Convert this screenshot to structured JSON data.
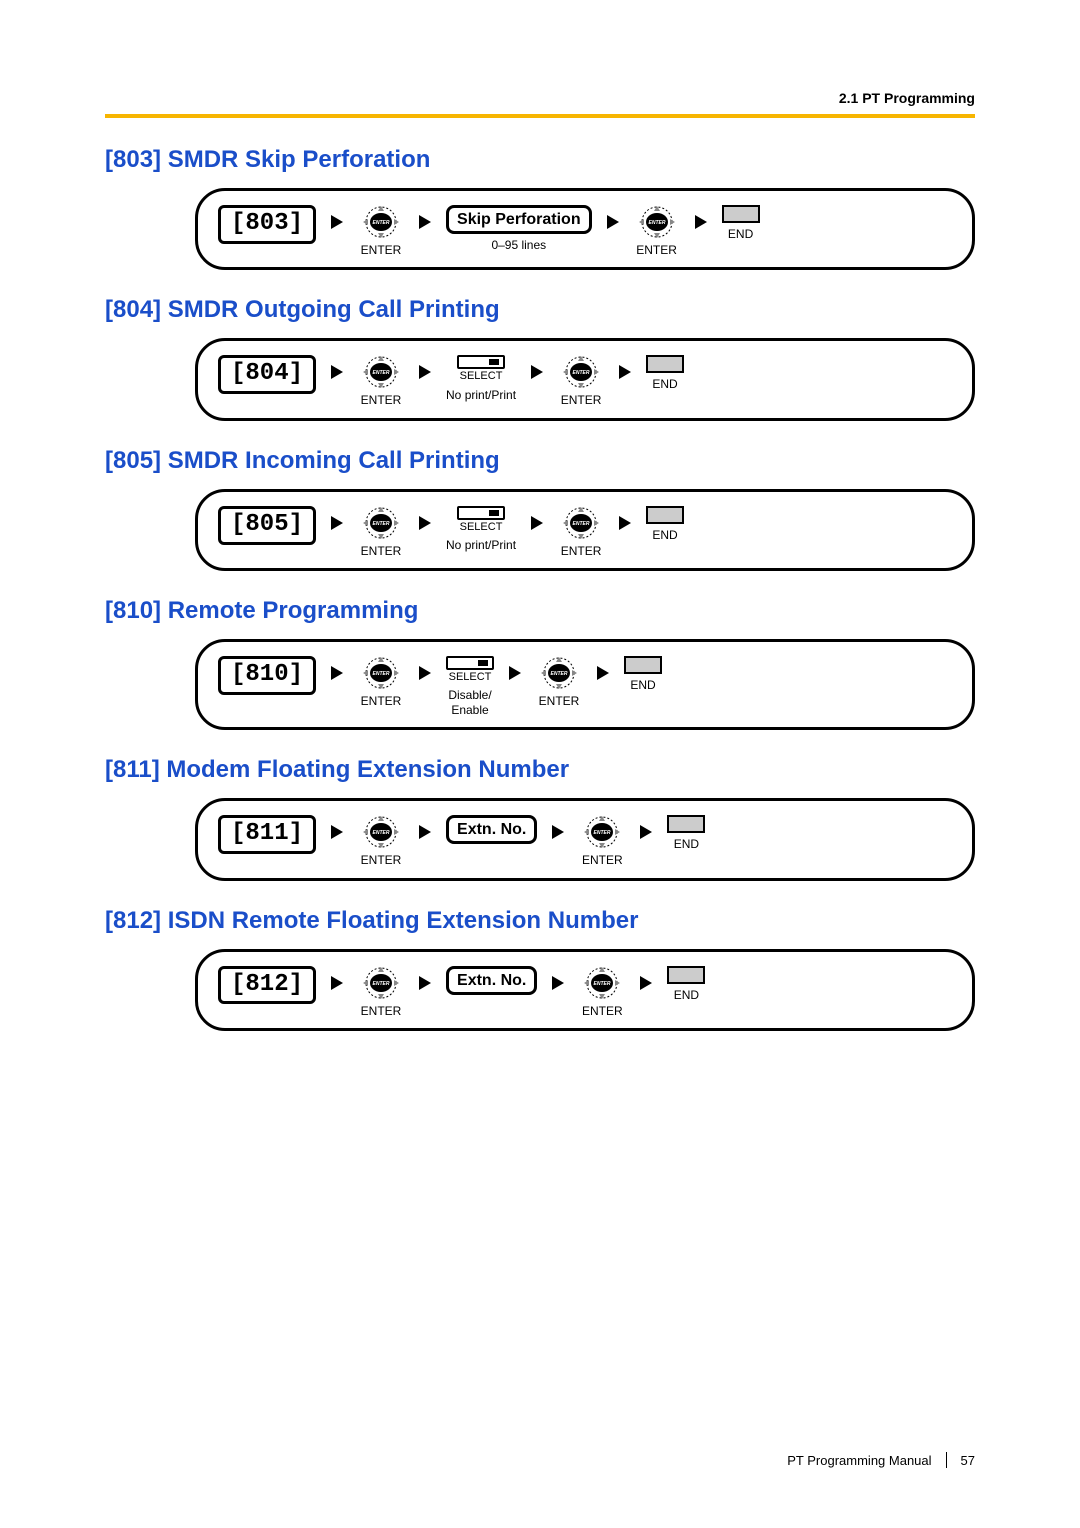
{
  "header": {
    "section": "2.1 PT Programming"
  },
  "rule_color": "#f7b500",
  "title_color": "#1a4ec9",
  "sections": [
    {
      "code": "803",
      "title": "[803] SMDR Skip Perforation",
      "param": {
        "type": "input",
        "label": "Skip Perforation",
        "sub": "0–95 lines"
      }
    },
    {
      "code": "804",
      "title": "[804] SMDR Outgoing Call Printing",
      "param": {
        "type": "select",
        "sub": "No print/Print"
      }
    },
    {
      "code": "805",
      "title": "[805] SMDR Incoming Call Printing",
      "param": {
        "type": "select",
        "sub": "No print/Print"
      }
    },
    {
      "code": "810",
      "title": "[810] Remote Programming",
      "param": {
        "type": "select",
        "sub": "Disable/\nEnable"
      }
    },
    {
      "code": "811",
      "title": "[811] Modem Floating Extension Number",
      "param": {
        "type": "input",
        "label": "Extn. No.",
        "sub": ""
      }
    },
    {
      "code": "812",
      "title": "[812] ISDN Remote Floating Extension Number",
      "param": {
        "type": "input",
        "label": "Extn. No.",
        "sub": ""
      }
    }
  ],
  "labels": {
    "enter": "ENTER",
    "select": "SELECT",
    "end": "END"
  },
  "footer": {
    "manual": "PT Programming Manual",
    "page": "57"
  }
}
